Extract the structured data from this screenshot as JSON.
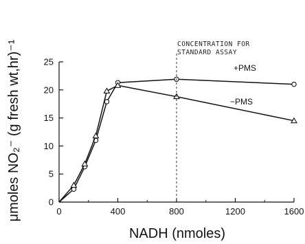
{
  "chart_data": {
    "type": "line",
    "xlabel": "NADH (nmoles)",
    "ylabel": "μmoles NO₂⁻ (g fresh wt,hr)⁻¹",
    "xlim": [
      0,
      1600
    ],
    "ylim": [
      0,
      25
    ],
    "x_ticks": [
      0,
      400,
      800,
      1200,
      1600
    ],
    "x_tick_labels": [
      "0",
      "400",
      "800",
      "1200",
      "1600"
    ],
    "y_ticks": [
      0,
      5,
      10,
      15,
      20,
      25
    ],
    "y_tick_labels": [
      "0",
      "5",
      "10",
      "15",
      "20",
      "25"
    ],
    "grid": false,
    "annotation": {
      "line1": "CONCENTRATION FOR",
      "line2": "STANDARD ASSAY",
      "x": 800
    },
    "series": [
      {
        "name": "+PMS",
        "label": "+PMS",
        "marker": "circle",
        "x": [
          0,
          100,
          175,
          250,
          325,
          400,
          800,
          1600
        ],
        "y": [
          0,
          2.3,
          6.3,
          11.0,
          17.9,
          21.3,
          21.9,
          21.0
        ]
      },
      {
        "name": "-PMS",
        "label": "−PMS",
        "marker": "triangle",
        "x": [
          0,
          100,
          175,
          250,
          325,
          400,
          800,
          1600
        ],
        "y": [
          0,
          3.0,
          6.8,
          11.8,
          19.8,
          20.8,
          18.8,
          14.5
        ]
      }
    ]
  }
}
